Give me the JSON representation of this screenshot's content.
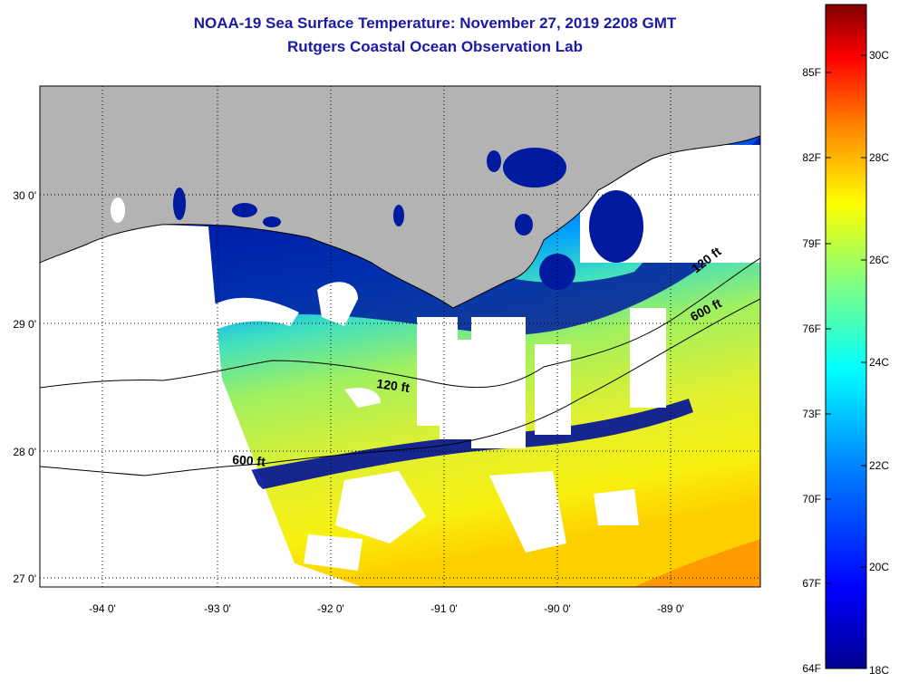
{
  "title": "NOAA-19 Sea Surface Temperature:  November 27, 2019 2208 GMT",
  "subtitle": "Rutgers Coastal Ocean Observation Lab",
  "map": {
    "lat_labels": [
      "30 0'",
      "29 0'",
      "28 0'",
      "27 0'"
    ],
    "lon_labels": [
      "-94 0'",
      "-93 0'",
      "-92 0'",
      "-91 0'",
      "-90 0'",
      "-89 0'"
    ],
    "isobath_labels": [
      "120 ft",
      "600 ft",
      "120 ft",
      "600 ft"
    ],
    "colors": {
      "land": "#b3b3b3",
      "cloud": "#ffffff",
      "cold": "#00008f",
      "warm": "#ffff00",
      "hot": "#ff8000"
    }
  },
  "colorbar": {
    "fahrenheit_labels": [
      "85F",
      "82F",
      "79F",
      "76F",
      "73F",
      "70F",
      "67F",
      "64F"
    ],
    "celsius_labels": [
      "30C",
      "28C",
      "26C",
      "24C",
      "22C",
      "20C",
      "18C"
    ]
  }
}
